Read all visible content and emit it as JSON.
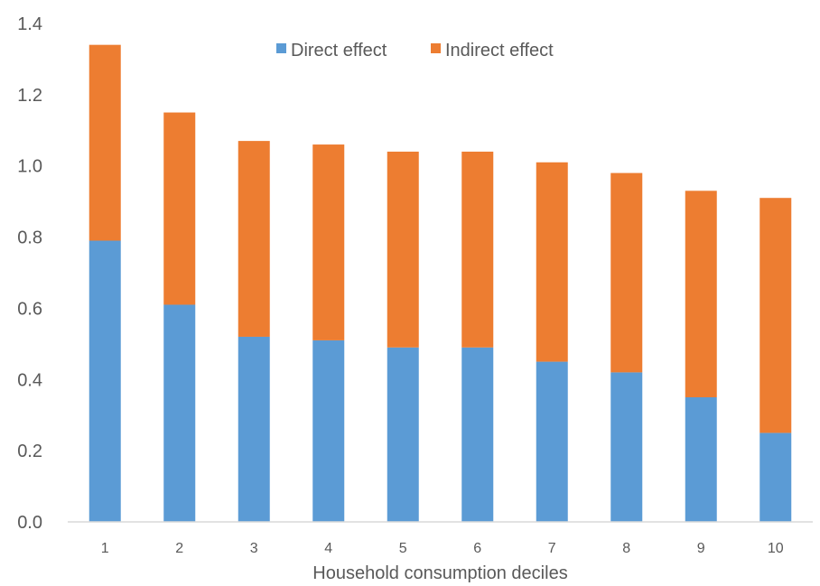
{
  "chart_data": {
    "type": "bar",
    "stacked": true,
    "title": "",
    "xlabel": "Household consumption deciles",
    "ylabel": "",
    "categories": [
      "1",
      "2",
      "3",
      "4",
      "5",
      "6",
      "7",
      "8",
      "9",
      "10"
    ],
    "series": [
      {
        "name": "Direct effect",
        "color": "#5B9BD5",
        "values": [
          0.79,
          0.61,
          0.52,
          0.51,
          0.49,
          0.49,
          0.45,
          0.42,
          0.35,
          0.25
        ]
      },
      {
        "name": "Indirect effect",
        "color": "#ED7D31",
        "values": [
          0.55,
          0.54,
          0.55,
          0.55,
          0.55,
          0.55,
          0.56,
          0.56,
          0.58,
          0.66
        ]
      }
    ],
    "ylim": [
      0,
      1.4
    ],
    "yticks": [
      "0.0",
      "0.2",
      "0.4",
      "0.6",
      "0.8",
      "1.0",
      "1.2",
      "1.4"
    ],
    "grid": false,
    "legend_position": "top"
  }
}
